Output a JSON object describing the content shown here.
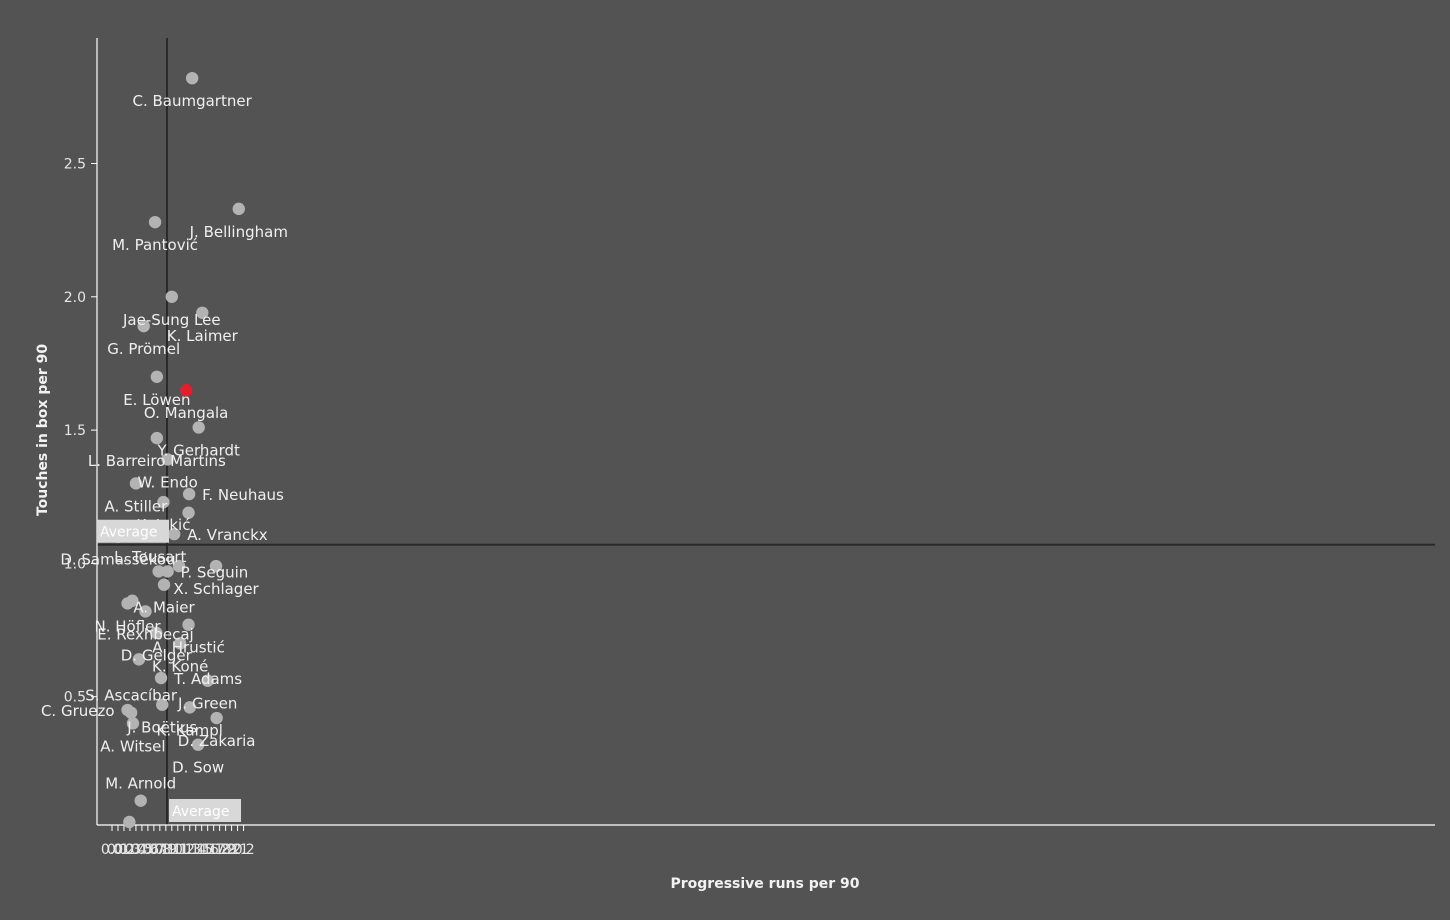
{
  "chart_data": {
    "type": "scatter",
    "title": "",
    "xlabel": "Progressive runs per 90",
    "ylabel": "Touches in box per 90",
    "xlim": [
      -0.02,
      2.23
    ],
    "ylim": [
      0.0,
      2.97
    ],
    "xticks": [
      "0.0",
      "0.1",
      "0.2",
      "0.3",
      "0.4",
      "0.5",
      "0.6",
      "0.7",
      "0.8",
      "0.9",
      "1.0",
      "1.1",
      "1.2",
      "1.3",
      "1.4",
      "1.5",
      "1.6",
      "1.7",
      "1.8",
      "1.9",
      "2.0",
      "2.1",
      "2.2"
    ],
    "yticks": [
      "0.5",
      "1.0",
      "1.5",
      "2.0",
      "2.5"
    ],
    "grid": false,
    "average_x": 0.92,
    "average_y": 1.07,
    "average_label": "Average",
    "colors": {
      "background": "#535353",
      "point": "#b3b3b3",
      "highlight": "#e0202d",
      "axis": "#ffffff",
      "average_line": "#2a2a2a"
    },
    "points": [
      {
        "name": "C. Baumgartner",
        "x": 1.34,
        "y": 2.82,
        "label_pos": "below"
      },
      {
        "name": "J. Bellingham",
        "x": 2.12,
        "y": 2.33,
        "label_pos": "below"
      },
      {
        "name": "M. Pantović",
        "x": 0.72,
        "y": 2.28,
        "label_pos": "below"
      },
      {
        "name": "Jae-Sung Lee",
        "x": 1.0,
        "y": 2.0,
        "label_pos": "below"
      },
      {
        "name": "K. Laimer",
        "x": 1.51,
        "y": 1.94,
        "label_pos": "below"
      },
      {
        "name": "G. Prömel",
        "x": 0.53,
        "y": 1.89,
        "label_pos": "below"
      },
      {
        "name": "E. Löwen",
        "x": 0.75,
        "y": 1.7,
        "label_pos": "below"
      },
      {
        "name": "O. Mangala",
        "x": 1.24,
        "y": 1.65,
        "label_pos": "below",
        "highlight": true
      },
      {
        "name": "Y. Gerhardt",
        "x": 1.45,
        "y": 1.51,
        "label_pos": "below"
      },
      {
        "name": "L. Barreiro Martins",
        "x": 0.75,
        "y": 1.47,
        "label_pos": "below"
      },
      {
        "name": "W. Endo",
        "x": 0.93,
        "y": 1.39,
        "label_pos": "below"
      },
      {
        "name": "A. Stiller",
        "x": 0.4,
        "y": 1.3,
        "label_pos": "below"
      },
      {
        "name": "F. Neuhaus",
        "x": 1.29,
        "y": 1.26,
        "label_pos": "right"
      },
      {
        "name": "K. Jakić",
        "x": 0.86,
        "y": 1.23,
        "label_pos": "below"
      },
      {
        "name": "",
        "x": 1.28,
        "y": 1.19,
        "label_pos": "none"
      },
      {
        "name": "A. Vranckx",
        "x": 1.04,
        "y": 1.11,
        "label_pos": "right"
      },
      {
        "name": "L. Tousart",
        "x": 0.64,
        "y": 1.11,
        "label_pos": "below"
      },
      {
        "name": "D. Samassékou",
        "x": 0.1,
        "y": 1.1,
        "label_pos": "below"
      },
      {
        "name": "X. Schlager",
        "x": 1.74,
        "y": 0.99,
        "label_pos": "below"
      },
      {
        "name": "",
        "x": 1.12,
        "y": 0.99,
        "label_pos": "none"
      },
      {
        "name": "P. Seguin",
        "x": 0.93,
        "y": 0.97,
        "label_pos": "right"
      },
      {
        "name": "",
        "x": 0.78,
        "y": 0.97,
        "label_pos": "none"
      },
      {
        "name": "A. Maier",
        "x": 0.87,
        "y": 0.92,
        "label_pos": "below"
      },
      {
        "name": "",
        "x": 0.34,
        "y": 0.86,
        "label_pos": "none"
      },
      {
        "name": "N. Höfler",
        "x": 0.26,
        "y": 0.85,
        "label_pos": "below"
      },
      {
        "name": "E. Rexhbecaj",
        "x": 0.56,
        "y": 0.82,
        "label_pos": "below"
      },
      {
        "name": "A. Hrustić",
        "x": 1.28,
        "y": 0.77,
        "label_pos": "below"
      },
      {
        "name": "D. Geiger",
        "x": 0.74,
        "y": 0.74,
        "label_pos": "below"
      },
      {
        "name": "K. Koné",
        "x": 1.14,
        "y": 0.7,
        "label_pos": "below"
      },
      {
        "name": "",
        "x": 0.45,
        "y": 0.64,
        "label_pos": "none"
      },
      {
        "name": "T. Adams",
        "x": 0.82,
        "y": 0.57,
        "label_pos": "right"
      },
      {
        "name": "J. Green",
        "x": 1.6,
        "y": 0.56,
        "label_pos": "below"
      },
      {
        "name": "J. Boëtius",
        "x": 0.84,
        "y": 0.47,
        "label_pos": "below"
      },
      {
        "name": "K. Kampl",
        "x": 1.3,
        "y": 0.46,
        "label_pos": "below"
      },
      {
        "name": "C. Gruezo",
        "x": 0.26,
        "y": 0.45,
        "label_pos": "left"
      },
      {
        "name": "S. Ascacíbar",
        "x": 0.32,
        "y": 0.44,
        "label_pos": "above"
      },
      {
        "name": "D. Zakaria",
        "x": 1.75,
        "y": 0.42,
        "label_pos": "below"
      },
      {
        "name": "A. Witsel",
        "x": 0.35,
        "y": 0.4,
        "label_pos": "below"
      },
      {
        "name": "D. Sow",
        "x": 1.44,
        "y": 0.32,
        "label_pos": "below"
      },
      {
        "name": "M. Arnold",
        "x": 0.48,
        "y": 0.11,
        "label_pos": "above"
      },
      {
        "name": "",
        "x": 0.29,
        "y": 0.03,
        "label_pos": "none"
      }
    ]
  }
}
